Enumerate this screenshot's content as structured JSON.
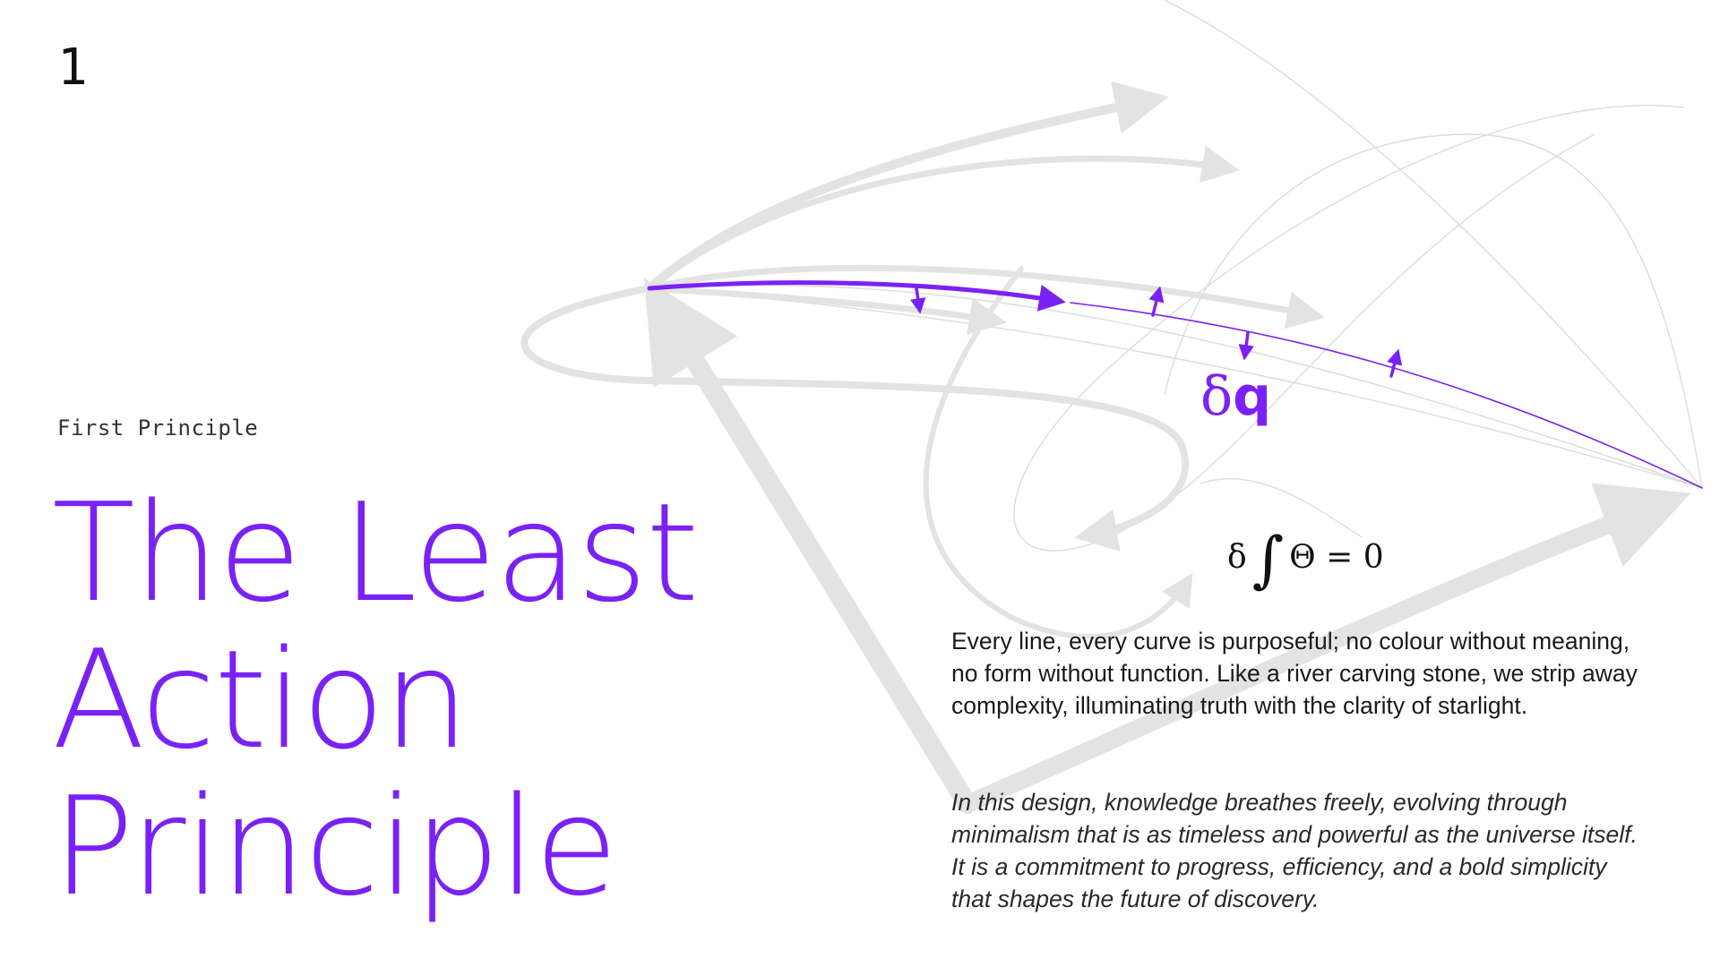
{
  "slide": {
    "number": "1",
    "eyebrow": "First Principle",
    "title_lines": [
      "The Least",
      "Action",
      "Principle"
    ]
  },
  "diagram": {
    "variation_label_delta": "δ",
    "variation_label_q": "q"
  },
  "formula": {
    "delta": "δ",
    "integral": "∫",
    "expression": "Θ = 0"
  },
  "body": {
    "paragraph_1": "Every line, every curve is purposeful; no colour without meaning, no form without function. Like a river carving stone, we strip away complexity, illuminating truth with the clarity of starlight.",
    "paragraph_2": "In this design, knowledge breathes freely, evolving through minimalism that is as timeless and powerful as the universe itself. It is a commitment to progress, efficiency, and a bold simplicity that shapes the future of discovery."
  },
  "colors": {
    "accent": "#7a22f5",
    "path_gray": "#e0e0e0",
    "thin_gray": "#d8d8d8",
    "text": "#1a1a1a"
  }
}
